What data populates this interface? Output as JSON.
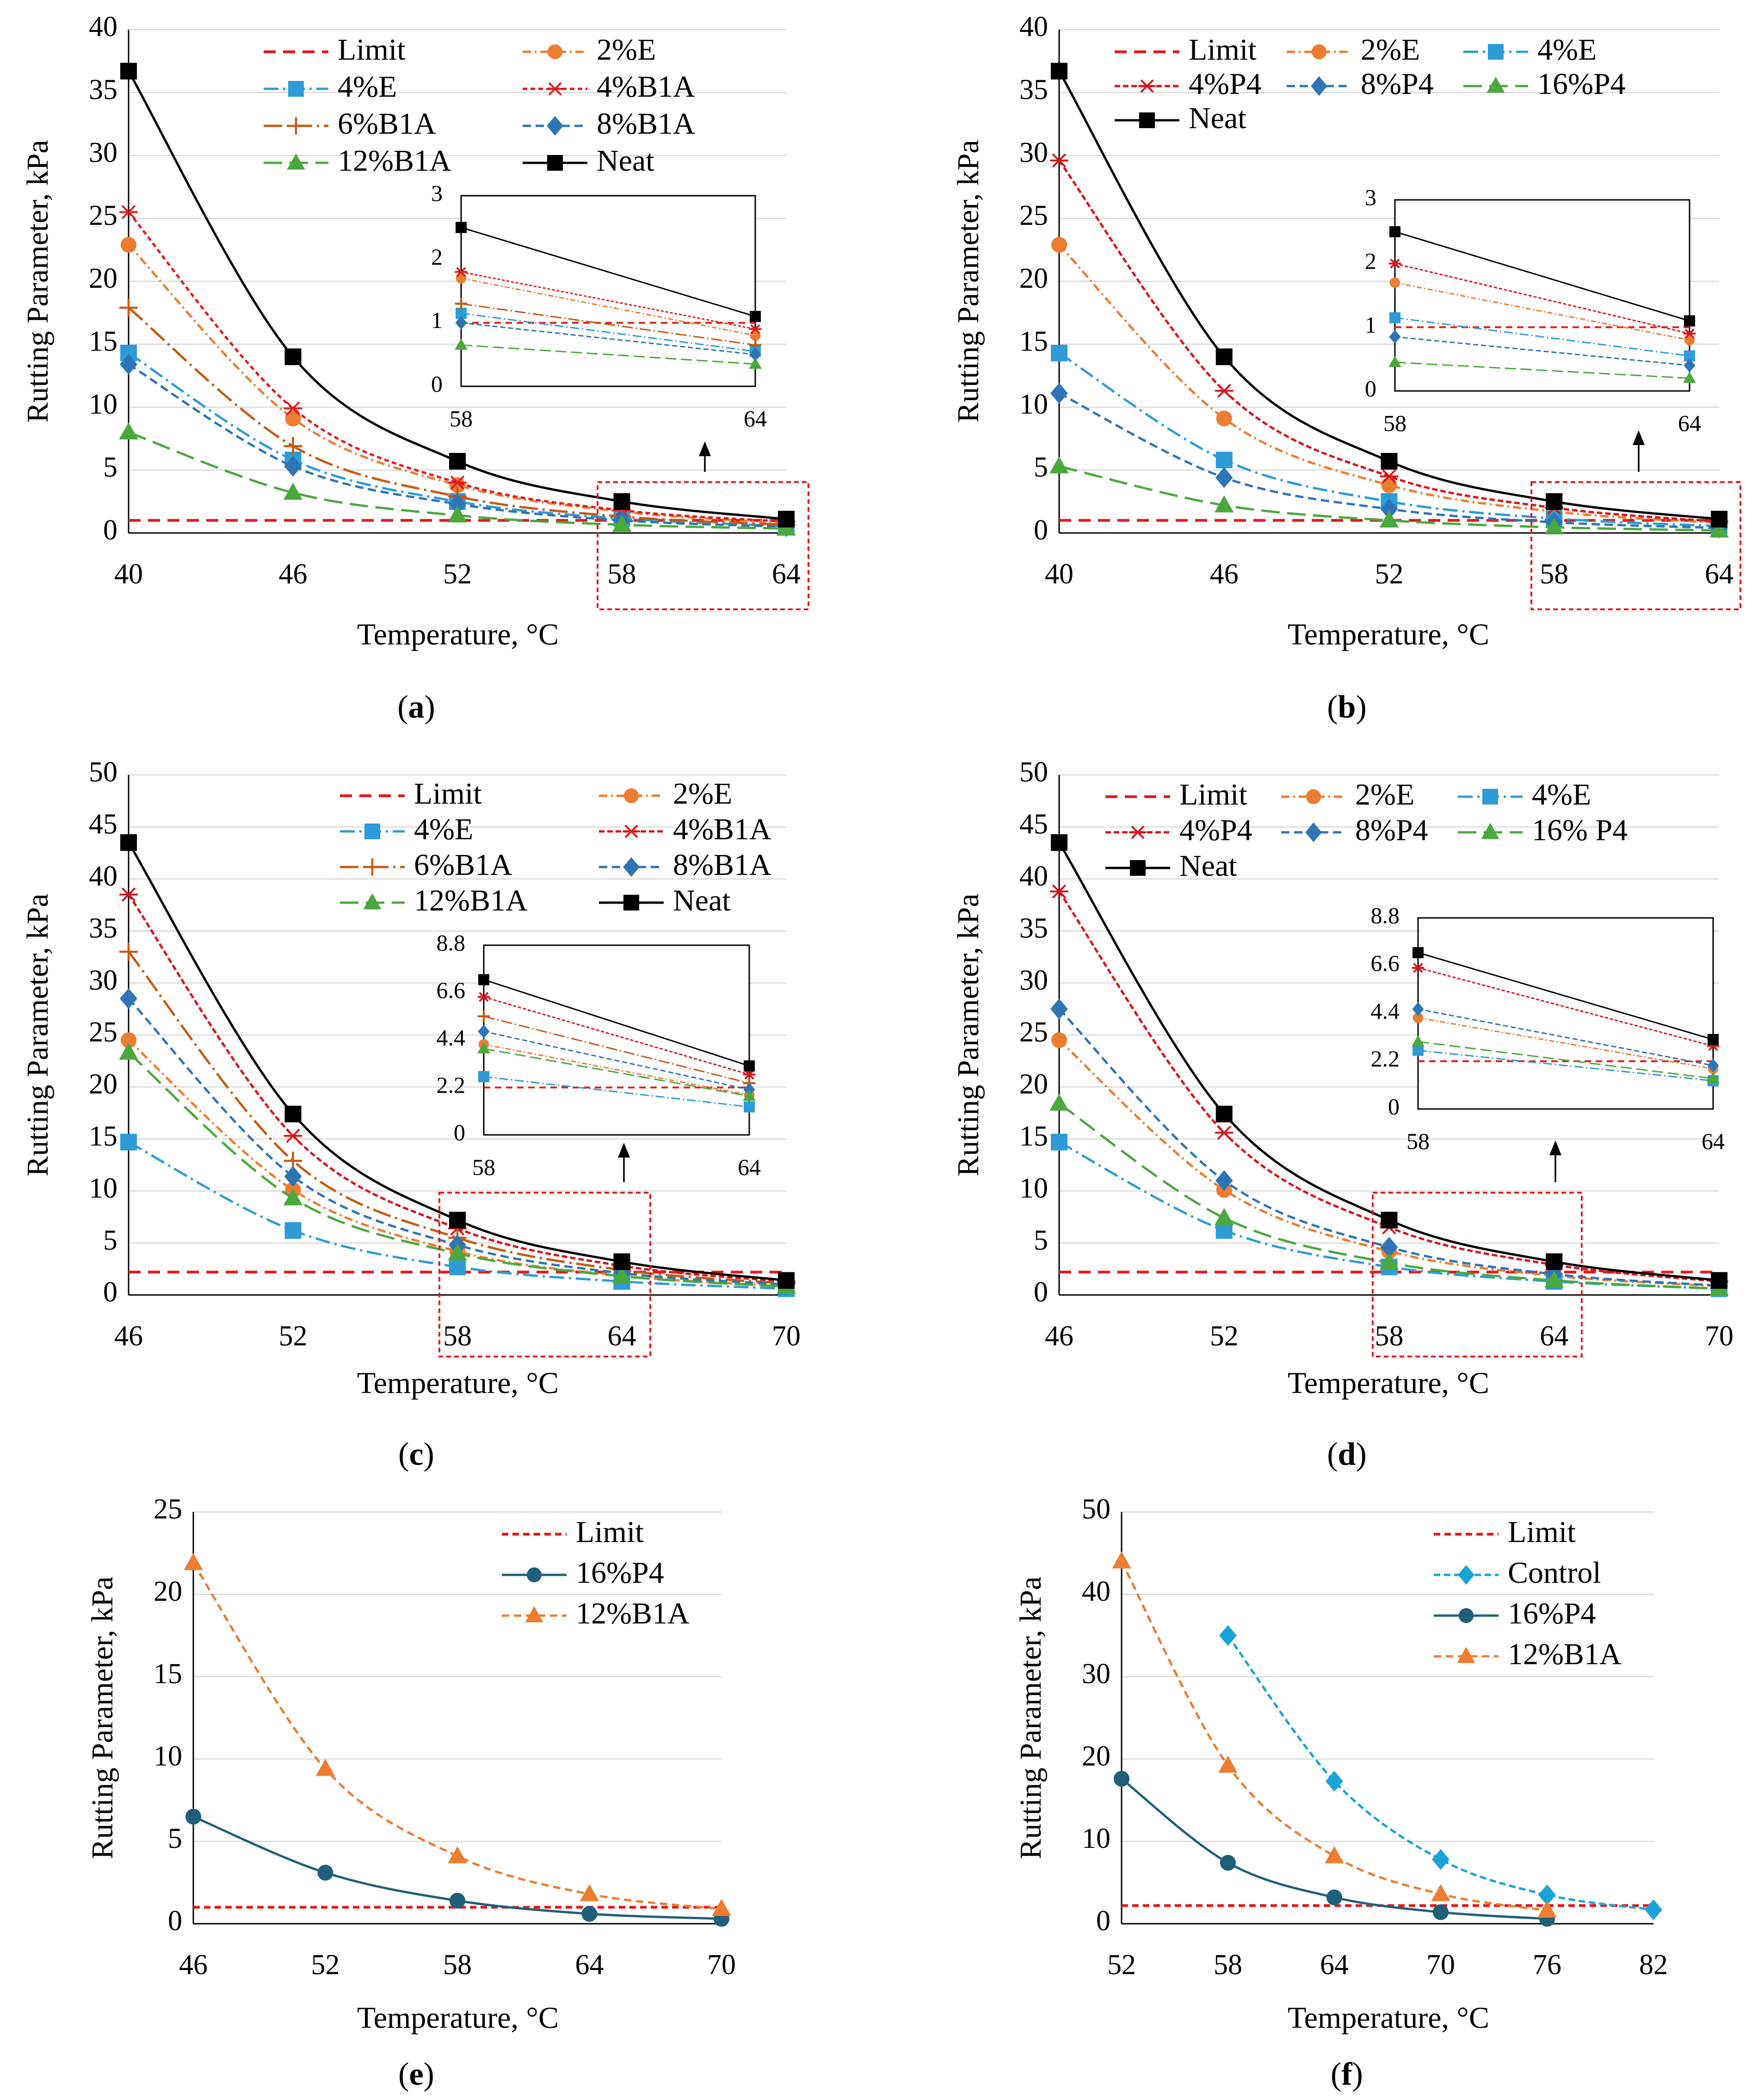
{
  "figure": {
    "panels": [
      "a",
      "b",
      "c",
      "d",
      "e",
      "f"
    ]
  },
  "chart_data": [
    {
      "panel": "a",
      "caption_label": "a",
      "type": "line",
      "xlabel": "Temperature, °C",
      "ylabel": "Rutting Parameter, kPa",
      "x": [
        40,
        46,
        52,
        58,
        64
      ],
      "xlim": [
        40,
        64
      ],
      "ylim": [
        0,
        40
      ],
      "xticks": [
        40,
        46,
        52,
        58,
        64
      ],
      "yticks": [
        0,
        5,
        10,
        15,
        20,
        25,
        30,
        35,
        40
      ],
      "legend_columns": 2,
      "series": [
        {
          "name": "Limit",
          "color": "#e41a1c",
          "dash": "26,16",
          "marker": "none",
          "width": 6,
          "values": [
            1,
            1,
            1,
            1,
            1
          ]
        },
        {
          "name": "2%E",
          "color": "#ed7d31",
          "dash": "18,8,4,8",
          "marker": "circle",
          "values": [
            22.9,
            9.1,
            3.8,
            1.7,
            0.8
          ]
        },
        {
          "name": "4%E",
          "color": "#2e9bd6",
          "dash": "32,10,5,10",
          "marker": "square",
          "values": [
            14.3,
            5.8,
            2.5,
            1.15,
            0.55
          ]
        },
        {
          "name": "4%B1A",
          "color": "#e41a1c",
          "dash": "10,7",
          "marker": "star",
          "values": [
            25.5,
            9.9,
            4.0,
            1.8,
            0.9
          ]
        },
        {
          "name": "6%B1A",
          "color": "#c55a11",
          "dash": "40,10,5,10",
          "marker": "plus",
          "values": [
            17.9,
            6.9,
            2.9,
            1.3,
            0.65
          ]
        },
        {
          "name": "8%B1A",
          "color": "#2e75b6",
          "dash": "18,10",
          "marker": "diamond",
          "values": [
            13.4,
            5.3,
            2.3,
            1.0,
            0.5
          ]
        },
        {
          "name": "12%B1A",
          "color": "#4aa83c",
          "dash": "40,16",
          "marker": "triangle",
          "values": [
            8.0,
            3.2,
            1.4,
            0.65,
            0.35
          ]
        },
        {
          "name": "Neat",
          "color": "#000000",
          "dash": "none",
          "marker": "square",
          "values": [
            36.7,
            14.0,
            5.7,
            2.5,
            1.1
          ]
        }
      ],
      "inset": {
        "x": [
          58,
          64
        ],
        "ylim": [
          0,
          3
        ],
        "yticks": [
          0,
          1,
          2,
          3
        ],
        "xticks": [
          58,
          64
        ],
        "zoom_range": [
          58,
          64
        ]
      }
    },
    {
      "panel": "b",
      "caption_label": "b",
      "type": "line",
      "xlabel": "Temperature, °C",
      "ylabel": "Rutting Parameter, kPa",
      "x": [
        40,
        46,
        52,
        58,
        64
      ],
      "xlim": [
        40,
        64
      ],
      "ylim": [
        0,
        40
      ],
      "xticks": [
        40,
        46,
        52,
        58,
        64
      ],
      "yticks": [
        0,
        5,
        10,
        15,
        20,
        25,
        30,
        35,
        40
      ],
      "legend_columns": 3,
      "series": [
        {
          "name": "Limit",
          "color": "#e41a1c",
          "dash": "26,16",
          "marker": "none",
          "width": 6,
          "values": [
            1,
            1,
            1,
            1,
            1
          ]
        },
        {
          "name": "2%E",
          "color": "#ed7d31",
          "dash": "18,8,4,8",
          "marker": "circle",
          "values": [
            22.9,
            9.1,
            3.8,
            1.7,
            0.8
          ]
        },
        {
          "name": "4%E",
          "color": "#2e9bd6",
          "dash": "32,10,5,10",
          "marker": "square",
          "values": [
            14.3,
            5.8,
            2.5,
            1.15,
            0.55
          ]
        },
        {
          "name": "4%P4",
          "color": "#d9151b",
          "dash": "12,6",
          "marker": "star",
          "values": [
            29.6,
            11.3,
            4.5,
            2.0,
            0.9
          ]
        },
        {
          "name": "8%P4",
          "color": "#2e75b6",
          "dash": "18,10",
          "marker": "diamond",
          "values": [
            11.1,
            4.4,
            1.9,
            0.85,
            0.4
          ]
        },
        {
          "name": "16%P4",
          "color": "#4aa83c",
          "dash": "40,16",
          "marker": "triangle",
          "values": [
            5.3,
            2.2,
            1.0,
            0.45,
            0.2
          ]
        },
        {
          "name": "Neat",
          "color": "#000000",
          "dash": "none",
          "marker": "square",
          "values": [
            36.7,
            14.0,
            5.7,
            2.5,
            1.1
          ]
        }
      ],
      "inset": {
        "x": [
          58,
          64
        ],
        "ylim": [
          0,
          3
        ],
        "yticks": [
          0,
          1,
          2,
          3
        ],
        "xticks": [
          58,
          64
        ],
        "zoom_range": [
          58,
          64
        ]
      }
    },
    {
      "panel": "c",
      "caption_label": "c",
      "type": "line",
      "xlabel": "Temperature, °C",
      "ylabel": "Rutting Parameter, kPa",
      "x": [
        46,
        52,
        58,
        64,
        70
      ],
      "xlim": [
        46,
        70
      ],
      "ylim": [
        0,
        50
      ],
      "xticks": [
        46,
        52,
        58,
        64,
        70
      ],
      "yticks": [
        0,
        5,
        10,
        15,
        20,
        25,
        30,
        35,
        40,
        45,
        50
      ],
      "legend_columns": 2,
      "series": [
        {
          "name": "Limit",
          "color": "#e41a1c",
          "dash": "26,16",
          "marker": "none",
          "width": 6,
          "values": [
            2.2,
            2.2,
            2.2,
            2.2,
            2.2
          ]
        },
        {
          "name": "2%E",
          "color": "#ed7d31",
          "dash": "18,8,4,8",
          "marker": "circle",
          "values": [
            24.5,
            10.1,
            4.2,
            1.85,
            0.85
          ]
        },
        {
          "name": "4%E",
          "color": "#2e9bd6",
          "dash": "32,10,5,10",
          "marker": "square",
          "values": [
            14.7,
            6.2,
            2.7,
            1.3,
            0.6
          ]
        },
        {
          "name": "4%B1A",
          "color": "#d9151b",
          "dash": "12,6",
          "marker": "star",
          "values": [
            38.5,
            15.3,
            6.4,
            2.8,
            1.3
          ]
        },
        {
          "name": "6%B1A",
          "color": "#c55a11",
          "dash": "40,10,5,10",
          "marker": "plus",
          "values": [
            33.0,
            12.9,
            5.5,
            2.4,
            1.1
          ]
        },
        {
          "name": "8%B1A",
          "color": "#2e75b6",
          "dash": "18,10",
          "marker": "diamond",
          "values": [
            28.5,
            11.4,
            4.8,
            2.1,
            1.0
          ]
        },
        {
          "name": "12%B1A",
          "color": "#4aa83c",
          "dash": "40,16",
          "marker": "triangle",
          "values": [
            23.3,
            9.3,
            4.0,
            1.8,
            0.8
          ]
        },
        {
          "name": "Neat",
          "color": "#000000",
          "dash": "none",
          "marker": "square",
          "values": [
            43.5,
            17.4,
            7.2,
            3.2,
            1.4
          ]
        }
      ],
      "inset": {
        "x": [
          58,
          64
        ],
        "ylim": [
          0,
          8.8
        ],
        "yticks": [
          0,
          2.2,
          4.4,
          6.6,
          8.8
        ],
        "ytick_labels": [
          "0",
          "2.2",
          "4.4",
          "6.6",
          "8.8"
        ],
        "xticks": [
          58,
          64
        ],
        "zoom_range": [
          58,
          64
        ]
      }
    },
    {
      "panel": "d",
      "caption_label": "d",
      "type": "line",
      "xlabel": "Temperature, °C",
      "ylabel": "Rutting Parameter, kPa",
      "x": [
        46,
        52,
        58,
        64,
        70
      ],
      "xlim": [
        46,
        70
      ],
      "ylim": [
        0,
        50
      ],
      "xticks": [
        46,
        52,
        58,
        64,
        70
      ],
      "yticks": [
        0,
        5,
        10,
        15,
        20,
        25,
        30,
        35,
        40,
        45,
        50
      ],
      "legend_columns": 3,
      "series": [
        {
          "name": "Limit",
          "color": "#e41a1c",
          "dash": "26,16",
          "marker": "none",
          "width": 6,
          "values": [
            2.2,
            2.2,
            2.2,
            2.2,
            2.2
          ]
        },
        {
          "name": "2%E",
          "color": "#ed7d31",
          "dash": "18,8,4,8",
          "marker": "circle",
          "values": [
            24.5,
            10.1,
            4.2,
            1.85,
            0.85
          ]
        },
        {
          "name": "4%E",
          "color": "#2e9bd6",
          "dash": "32,10,5,10",
          "marker": "square",
          "values": [
            14.7,
            6.2,
            2.7,
            1.3,
            0.6
          ]
        },
        {
          "name": "4%P4",
          "color": "#d9151b",
          "dash": "12,6",
          "marker": "star",
          "values": [
            38.8,
            15.6,
            6.5,
            2.9,
            1.3
          ]
        },
        {
          "name": "8%P4",
          "color": "#2e75b6",
          "dash": "18,10",
          "marker": "diamond",
          "values": [
            27.5,
            11.0,
            4.6,
            2.0,
            0.9
          ]
        },
        {
          "name": "16% P4",
          "color": "#4aa83c",
          "dash": "40,16",
          "marker": "triangle",
          "values": [
            18.4,
            7.4,
            3.1,
            1.4,
            0.6
          ]
        },
        {
          "name": "Neat",
          "color": "#000000",
          "dash": "none",
          "marker": "square",
          "values": [
            43.5,
            17.4,
            7.2,
            3.2,
            1.4
          ]
        }
      ],
      "inset": {
        "x": [
          58,
          64
        ],
        "ylim": [
          0,
          8.8
        ],
        "yticks": [
          0,
          2.2,
          4.4,
          6.6,
          8.8
        ],
        "ytick_labels": [
          "0",
          "2.2",
          "4.4",
          "6.6",
          "8.8"
        ],
        "xticks": [
          58,
          64
        ],
        "zoom_range": [
          58,
          64
        ]
      }
    },
    {
      "panel": "e",
      "caption_label": "e",
      "type": "line",
      "xlabel": "Temperature, °C",
      "ylabel": "Rutting Parameter, kPa",
      "x": [
        46,
        52,
        58,
        64,
        70
      ],
      "xlim": [
        46,
        70
      ],
      "ylim": [
        0,
        25
      ],
      "xticks": [
        46,
        52,
        58,
        64,
        70
      ],
      "yticks": [
        0,
        5,
        10,
        15,
        20,
        25
      ],
      "legend_columns": 1,
      "series": [
        {
          "name": "Limit",
          "color": "#e41a1c",
          "dash": "14,9",
          "marker": "none",
          "width": 6,
          "values": [
            1,
            1,
            1,
            1,
            1
          ]
        },
        {
          "name": "16%P4",
          "color": "#1f5f7a",
          "dash": "none",
          "marker": "circle",
          "values": [
            6.5,
            3.1,
            1.4,
            0.6,
            0.3
          ]
        },
        {
          "name": "12%B1A",
          "color": "#ed7d31",
          "dash": "16,10",
          "marker": "triangle",
          "values": [
            21.9,
            9.4,
            4.1,
            1.8,
            0.9
          ]
        }
      ]
    },
    {
      "panel": "f",
      "caption_label": "f",
      "type": "line",
      "xlabel": "Temperature, °C",
      "ylabel": "Rutting Parameter, kPa",
      "x": [
        52,
        58,
        64,
        70,
        76,
        82
      ],
      "xlim": [
        52,
        82
      ],
      "ylim": [
        0,
        50
      ],
      "xticks": [
        52,
        58,
        64,
        70,
        76,
        82
      ],
      "yticks": [
        0,
        10,
        20,
        30,
        40,
        50
      ],
      "legend_columns": 1,
      "series": [
        {
          "name": "Limit",
          "color": "#e41a1c",
          "dash": "14,9",
          "marker": "none",
          "width": 6,
          "values": [
            2.2,
            2.2,
            2.2,
            2.2,
            2.2,
            2.2
          ]
        },
        {
          "name": "Control",
          "color": "#1aa3d6",
          "dash": "14,8",
          "marker": "diamond",
          "values": [
            null,
            35.0,
            17.3,
            7.8,
            3.5,
            1.7
          ]
        },
        {
          "name": "16%P4",
          "color": "#1f5f7a",
          "dash": "none",
          "marker": "circle",
          "values": [
            17.6,
            7.4,
            3.2,
            1.4,
            0.6,
            null
          ]
        },
        {
          "name": "12%B1A",
          "color": "#ed7d31",
          "dash": "16,10",
          "marker": "triangle",
          "values": [
            44.0,
            19.2,
            8.2,
            3.6,
            1.6,
            null
          ]
        }
      ]
    }
  ]
}
